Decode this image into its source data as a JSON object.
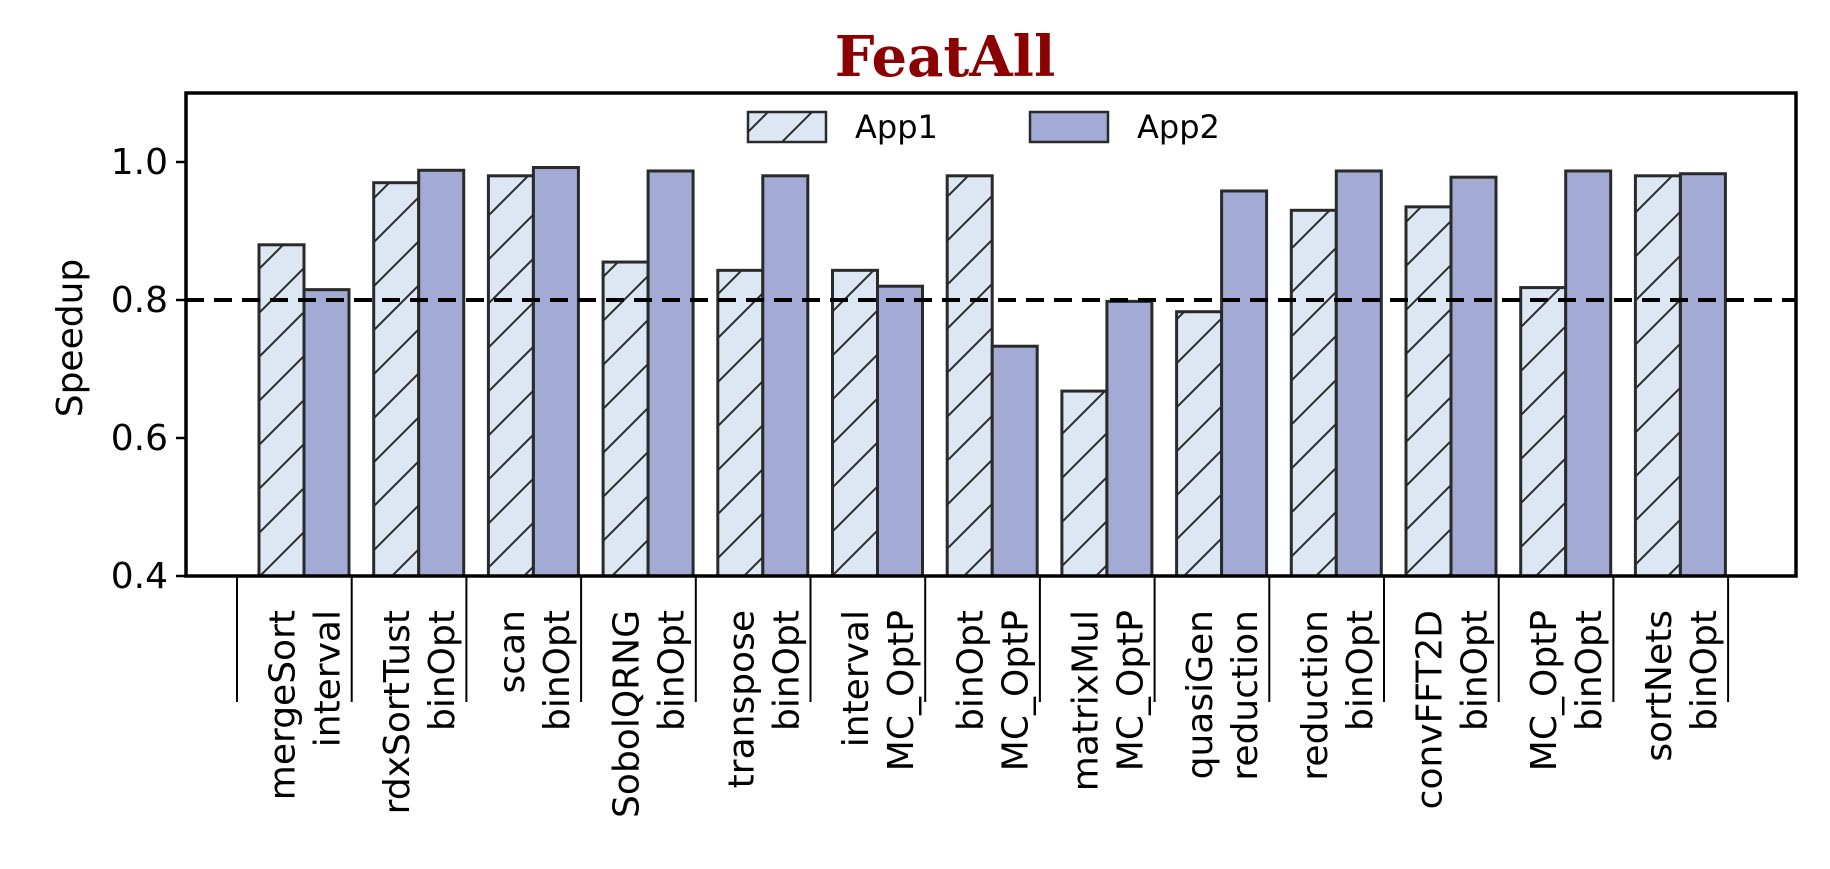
{
  "chart_data": {
    "type": "bar",
    "title": "FeatAll",
    "xlabel": "",
    "ylabel": "Speedup",
    "ylim": [
      0.4,
      1.1
    ],
    "yticks": [
      "0.4",
      "0.6",
      "0.8",
      "1.0"
    ],
    "reference_line": 0.8,
    "grid": false,
    "legend_position": "top-center",
    "groups": [
      [
        "mergeSort",
        "interval"
      ],
      [
        "rdxSortTust",
        "binOpt"
      ],
      [
        "scan",
        "binOpt"
      ],
      [
        "SobolQRNG",
        "binOpt"
      ],
      [
        "transpose",
        "binOpt"
      ],
      [
        "interval",
        "MC_OptP"
      ],
      [
        "binOpt",
        "MC_OptP"
      ],
      [
        "matrixMul",
        "MC_OptP"
      ],
      [
        "quasiGen",
        "reduction"
      ],
      [
        "reduction",
        "binOpt"
      ],
      [
        "convFFT2D",
        "binOpt"
      ],
      [
        "MC_OptP",
        "binOpt"
      ],
      [
        "sortNets",
        "binOpt"
      ]
    ],
    "series": [
      {
        "name": "App1",
        "color": "#dde7f3",
        "hatch": "diagonal",
        "values": [
          0.88,
          0.97,
          0.98,
          0.855,
          0.843,
          0.843,
          0.98,
          0.668,
          0.783,
          0.93,
          0.935,
          0.818,
          0.98
        ]
      },
      {
        "name": "App2",
        "color": "#a3abd4",
        "hatch": "none",
        "values": [
          0.815,
          0.988,
          0.992,
          0.987,
          0.98,
          0.82,
          0.733,
          0.798,
          0.958,
          0.987,
          0.978,
          0.987,
          0.983
        ]
      }
    ]
  }
}
